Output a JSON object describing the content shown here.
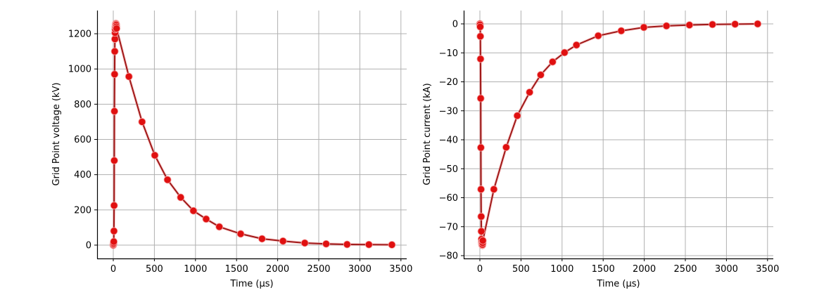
{
  "figure": {
    "background": "#ffffff",
    "line_color": "#a01818",
    "marker_color": "#e01010",
    "grid_color": "#b0b0b0"
  },
  "chart_data": [
    {
      "type": "line",
      "title": "",
      "xlabel": "Time (µs)",
      "ylabel": "Grid Point voltage (kV)",
      "xlim": [
        -200,
        3600
      ],
      "ylim": [
        -75,
        1330
      ],
      "xticks": [
        0,
        500,
        1000,
        1500,
        2000,
        2500,
        3000,
        3500
      ],
      "yticks": [
        0,
        200,
        400,
        600,
        800,
        1000,
        1200
      ],
      "grid": true,
      "markers": true,
      "series": [
        {
          "name": "voltage",
          "x": [
            0,
            2,
            4,
            6,
            8,
            10,
            12,
            14,
            16,
            18,
            20,
            22,
            24,
            26,
            28,
            30,
            32,
            34,
            36,
            38,
            40,
            190,
            350,
            505,
            660,
            820,
            975,
            1130,
            1290,
            1550,
            1810,
            2065,
            2330,
            2590,
            2845,
            3110,
            3390
          ],
          "y": [
            0,
            5,
            12,
            20,
            80,
            225,
            480,
            760,
            970,
            1100,
            1170,
            1205,
            1225,
            1240,
            1250,
            1255,
            1258,
            1255,
            1250,
            1240,
            1230,
            957,
            700,
            510,
            371,
            271,
            195,
            148,
            104,
            64,
            36,
            23,
            12,
            7,
            4,
            3,
            2
          ]
        }
      ]
    },
    {
      "type": "line",
      "title": "",
      "xlabel": "Time (µs)",
      "ylabel": "Grid Point current (kA)",
      "xlim": [
        -200,
        3600
      ],
      "ylim": [
        -81,
        4.5
      ],
      "xticks": [
        0,
        500,
        1000,
        1500,
        2000,
        2500,
        3000,
        3500
      ],
      "yticks": [
        0,
        -10,
        -20,
        -30,
        -40,
        -50,
        -60,
        -70,
        -80
      ],
      "grid": true,
      "markers": true,
      "series": [
        {
          "name": "current",
          "x": [
            0,
            2,
            4,
            6,
            8,
            10,
            12,
            14,
            16,
            18,
            20,
            22,
            24,
            26,
            28,
            30,
            32,
            34,
            36,
            170,
            320,
            455,
            605,
            740,
            885,
            1030,
            1175,
            1440,
            1720,
            1995,
            2270,
            2550,
            2830,
            3105,
            3380
          ],
          "y": [
            0,
            -0.3,
            -1,
            -4.3,
            -12.1,
            -25.7,
            -42.7,
            -57.1,
            -66.5,
            -71.6,
            -74.3,
            -75.3,
            -75.8,
            -76.1,
            -76.3,
            -76.4,
            -76.2,
            -75.6,
            -74.8,
            -57.1,
            -42.6,
            -31.7,
            -23.6,
            -17.6,
            -13.1,
            -9.9,
            -7.3,
            -4.1,
            -2.4,
            -1.2,
            -0.7,
            -0.4,
            -0.2,
            -0.1,
            0
          ]
        }
      ]
    }
  ],
  "labels": {
    "left_xlabel": "Time (µs)",
    "left_ylabel": "Grid Point voltage (kV)",
    "right_xlabel": "Time (µs)",
    "right_ylabel": "Grid Point current (kA)",
    "left_xticks": [
      "0",
      "500",
      "1000",
      "1500",
      "2000",
      "2500",
      "3000",
      "3500"
    ],
    "left_yticks": [
      "0",
      "200",
      "400",
      "600",
      "800",
      "1000",
      "1200"
    ],
    "right_xticks": [
      "0",
      "500",
      "1000",
      "1500",
      "2000",
      "2500",
      "3000",
      "3500"
    ],
    "right_yticks": [
      "0",
      "−10",
      "−20",
      "−30",
      "−40",
      "−50",
      "−60",
      "−70",
      "−80"
    ]
  }
}
